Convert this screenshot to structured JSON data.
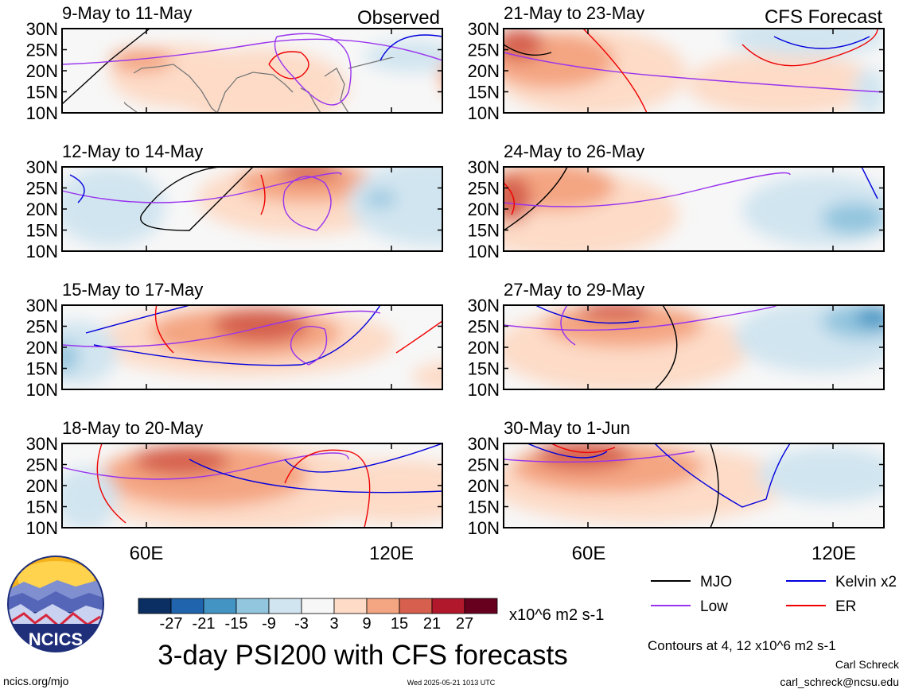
{
  "title": "3-day PSI200 with CFS forecasts",
  "left_header": "Observed",
  "right_header": "CFS Forecast",
  "contour_note": "Contours at 4, 12 x10^6 m2 s-1",
  "author": "Carl Schreck",
  "email": "carl_schreck@ncsu.edu",
  "site": "ncics.org/mjo",
  "timestamp": "Wed 2025-05-21 1013 UTC",
  "logo_text": "NCICS",
  "colorbar": {
    "unit_label": "x10^6 m2 s-1",
    "ticks": [
      "-27",
      "-21",
      "-15",
      "-9",
      "-3",
      "3",
      "9",
      "15",
      "21",
      "27"
    ],
    "colors": [
      "#0b2f63",
      "#1f64ad",
      "#4393c3",
      "#92c5de",
      "#d1e5f0",
      "#f7f7f7",
      "#fddbc7",
      "#f4a582",
      "#d6604d",
      "#b2182b",
      "#67001f"
    ]
  },
  "legend": [
    {
      "label": "MJO",
      "color": "#000000"
    },
    {
      "label": "Kelvin x2",
      "color": "#0000dd"
    },
    {
      "label": "Low",
      "color": "#9933ee"
    },
    {
      "label": "ER",
      "color": "#ee0000"
    }
  ],
  "chart_data": [
    {
      "type": "heatmap",
      "title": "9-May to 11-May",
      "column": "Observed",
      "yticks": [
        "30N",
        "25N",
        "20N",
        "15N",
        "10N"
      ],
      "xlim": [
        40,
        130
      ],
      "ylim": [
        10,
        30
      ]
    },
    {
      "type": "heatmap",
      "title": "12-May to 14-May",
      "column": "Observed",
      "yticks": [
        "30N",
        "25N",
        "20N",
        "15N",
        "10N"
      ],
      "xlim": [
        40,
        130
      ],
      "ylim": [
        10,
        30
      ]
    },
    {
      "type": "heatmap",
      "title": "15-May to 17-May",
      "column": "Observed",
      "yticks": [
        "30N",
        "25N",
        "20N",
        "15N",
        "10N"
      ],
      "xlim": [
        40,
        130
      ],
      "ylim": [
        10,
        30
      ]
    },
    {
      "type": "heatmap",
      "title": "18-May to 20-May",
      "column": "Observed",
      "yticks": [
        "30N",
        "25N",
        "20N",
        "15N",
        "10N"
      ],
      "xticks": [
        "60E",
        "120E"
      ],
      "xlim": [
        40,
        130
      ],
      "ylim": [
        10,
        30
      ]
    },
    {
      "type": "heatmap",
      "title": "21-May to 23-May",
      "column": "CFS Forecast",
      "yticks": [
        "30N",
        "25N",
        "20N",
        "15N",
        "10N"
      ],
      "xlim": [
        40,
        130
      ],
      "ylim": [
        10,
        30
      ]
    },
    {
      "type": "heatmap",
      "title": "24-May to 26-May",
      "column": "CFS Forecast",
      "yticks": [
        "30N",
        "25N",
        "20N",
        "15N",
        "10N"
      ],
      "xlim": [
        40,
        130
      ],
      "ylim": [
        10,
        30
      ]
    },
    {
      "type": "heatmap",
      "title": "27-May to 29-May",
      "column": "CFS Forecast",
      "yticks": [
        "30N",
        "25N",
        "20N",
        "15N",
        "10N"
      ],
      "xlim": [
        40,
        130
      ],
      "ylim": [
        10,
        30
      ]
    },
    {
      "type": "heatmap",
      "title": "30-May to 1-Jun",
      "column": "CFS Forecast",
      "yticks": [
        "30N",
        "25N",
        "20N",
        "15N",
        "10N"
      ],
      "xticks": [
        "60E",
        "120E"
      ],
      "xlim": [
        40,
        130
      ],
      "ylim": [
        10,
        30
      ]
    }
  ]
}
